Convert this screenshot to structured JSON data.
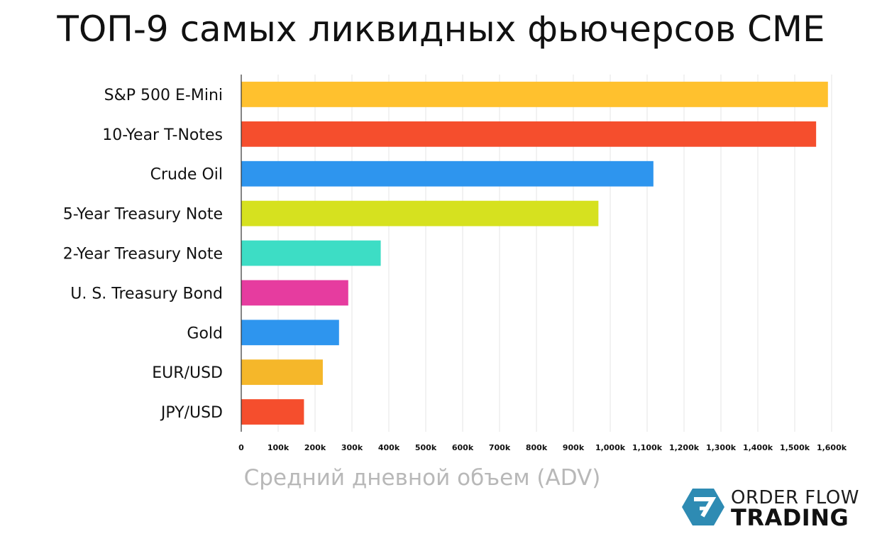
{
  "chart_data": {
    "type": "bar",
    "orientation": "horizontal",
    "title": "ТОП-9 самых ликвидных фьючерсов CME",
    "xlabel": "Средний дневной объем (ADV)",
    "ylabel": "",
    "categories": [
      "S&P 500 E-Mini",
      "10-Year T-Notes",
      "Crude Oil",
      "5-Year Treasury Note",
      "2-Year Treasury Note",
      "U. S. Treasury Bond",
      "Gold",
      "EUR/USD",
      "JPY/USD"
    ],
    "values": [
      1590,
      1558,
      1117,
      968,
      378,
      290,
      265,
      221,
      170
    ],
    "colors": [
      "#FFC12E",
      "#F54E2D",
      "#2E95EE",
      "#D6E11F",
      "#3DDDC5",
      "#E63C9F",
      "#2E95EE",
      "#F5B72A",
      "#F54E2D"
    ],
    "xlim": [
      0,
      1600
    ],
    "x_ticks": [
      0,
      100,
      200,
      300,
      400,
      500,
      600,
      700,
      800,
      900,
      1000,
      1100,
      1200,
      1300,
      1400,
      1500,
      1600
    ],
    "x_tick_labels": [
      "0",
      "100k",
      "200k",
      "300k",
      "400k",
      "500k",
      "600k",
      "700k",
      "800k",
      "900k",
      "1,000k",
      "1,100k",
      "1,200k",
      "1,300k",
      "1,400k",
      "1,500k",
      "1,600k"
    ],
    "grid": "vertical",
    "legend": "none"
  },
  "logo": {
    "line1": "ORDER FLOW",
    "line2": "TRADING",
    "color": "#2E8BB3"
  }
}
